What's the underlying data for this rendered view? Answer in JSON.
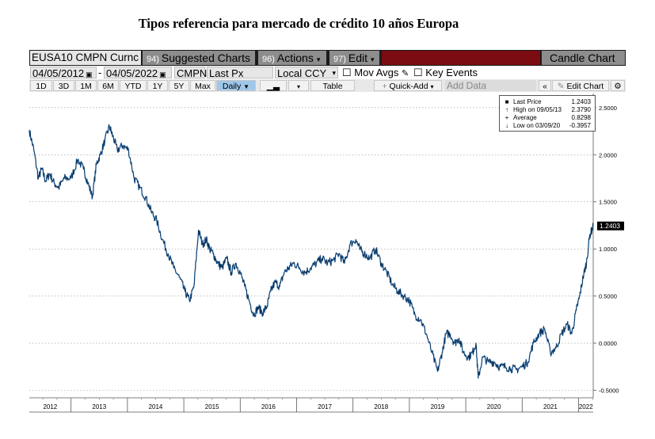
{
  "title": "Tipos referencia para mercado de crédito 10 años Europa",
  "toolbar": {
    "ticker": "EUSA10 CMPN Curnc",
    "suggested_num": "94)",
    "suggested_label": "Suggested Charts",
    "actions_num": "96)",
    "actions_label": "Actions",
    "edit_num": "97)",
    "edit_label": "Edit",
    "candle_label": "Candle Chart",
    "start_date": "04/05/2012",
    "dash": "-",
    "end_date": "04/05/2022",
    "source": "CMPN",
    "field": "Last Px",
    "currency": "Local CCY",
    "mov_avgs": "Mov Avgs",
    "key_events": "Key Events",
    "table": "Table",
    "quick_add": "Quick-Add",
    "add_data": "Add Data",
    "edit_chart": "Edit Chart",
    "periods": [
      "1D",
      "3D",
      "1M",
      "6M",
      "YTD",
      "1Y",
      "5Y",
      "Max"
    ],
    "frequency": "Daily",
    "colors": {
      "bar": "#1c1c1c",
      "menu": "#8d8d8d",
      "accent_red": "#7a0c12",
      "active": "#9fc7ea"
    }
  },
  "legend": {
    "items": [
      {
        "glyph": "■",
        "label": "Last Price",
        "value": "1.2403"
      },
      {
        "glyph": "↑",
        "label": "High on 09/05/13",
        "value": "2.3790"
      },
      {
        "glyph": "+",
        "label": "Average",
        "value": "0.8298"
      },
      {
        "glyph": "↓",
        "label": "Low on 03/09/20",
        "value": "-0.3957"
      }
    ]
  },
  "chart_data": {
    "type": "line",
    "title": "Tipos referencia para mercado de crédito 10 años Europa",
    "xlabel": "",
    "ylabel": "",
    "x_range": [
      2012.26,
      2022.26
    ],
    "ylim": [
      -0.58,
      2.65
    ],
    "grid": true,
    "line_color": "#1f6bb3",
    "last_value_label": "1.2403",
    "y_ticks": [
      2.5,
      2.0,
      1.5,
      1.0,
      0.5,
      0.0,
      -0.5
    ],
    "y_tick_labels": [
      "2.5000",
      "2.0000",
      "1.5000",
      "1.0000",
      "0.5000",
      "0.0000",
      "-0.5000"
    ],
    "x_year_ticks": [
      2012,
      2013,
      2014,
      2015,
      2016,
      2017,
      2018,
      2019,
      2020,
      2021,
      2022
    ],
    "x_year_labels": [
      "2012",
      "2013",
      "2014",
      "2015",
      "2016",
      "2017",
      "2018",
      "2019",
      "2020",
      "2021",
      "2022"
    ],
    "series": [
      {
        "name": "EUSA10 CMPN Curnc - Last Price",
        "x": [
          2012.26,
          2012.34,
          2012.42,
          2012.48,
          2012.55,
          2012.62,
          2012.7,
          2012.78,
          2012.88,
          2013.0,
          2013.12,
          2013.22,
          2013.3,
          2013.38,
          2013.45,
          2013.52,
          2013.6,
          2013.68,
          2013.74,
          2013.82,
          2013.92,
          2014.02,
          2014.12,
          2014.22,
          2014.32,
          2014.42,
          2014.52,
          2014.62,
          2014.72,
          2014.82,
          2014.92,
          2015.02,
          2015.1,
          2015.18,
          2015.26,
          2015.33,
          2015.4,
          2015.46,
          2015.52,
          2015.6,
          2015.68,
          2015.76,
          2015.84,
          2015.92,
          2016.0,
          2016.08,
          2016.16,
          2016.24,
          2016.32,
          2016.4,
          2016.48,
          2016.54,
          2016.62,
          2016.7,
          2016.78,
          2016.86,
          2016.95,
          2017.05,
          2017.15,
          2017.25,
          2017.35,
          2017.45,
          2017.55,
          2017.65,
          2017.75,
          2017.85,
          2017.95,
          2018.05,
          2018.12,
          2018.2,
          2018.3,
          2018.4,
          2018.5,
          2018.6,
          2018.7,
          2018.8,
          2018.9,
          2019.0,
          2019.1,
          2019.2,
          2019.3,
          2019.4,
          2019.5,
          2019.58,
          2019.65,
          2019.72,
          2019.8,
          2019.88,
          2019.96,
          2020.05,
          2020.12,
          2020.18,
          2020.22,
          2020.3,
          2020.4,
          2020.5,
          2020.6,
          2020.7,
          2020.8,
          2020.9,
          2021.0,
          2021.1,
          2021.2,
          2021.3,
          2021.4,
          2021.5,
          2021.6,
          2021.7,
          2021.8,
          2021.88,
          2021.96,
          2022.02,
          2022.08,
          2022.14,
          2022.2,
          2022.26
        ],
        "y": [
          2.26,
          2.05,
          1.75,
          1.85,
          1.72,
          1.8,
          1.7,
          1.65,
          1.75,
          1.75,
          1.95,
          1.85,
          1.7,
          1.55,
          1.9,
          2.0,
          2.15,
          2.3,
          2.2,
          2.05,
          2.1,
          2.05,
          1.75,
          1.65,
          1.55,
          1.4,
          1.3,
          1.1,
          0.95,
          0.8,
          0.7,
          0.55,
          0.45,
          0.6,
          1.2,
          1.05,
          1.1,
          1.0,
          0.95,
          0.85,
          0.8,
          0.9,
          0.75,
          0.85,
          0.75,
          0.6,
          0.45,
          0.3,
          0.38,
          0.32,
          0.4,
          0.55,
          0.65,
          0.6,
          0.75,
          0.8,
          0.85,
          0.8,
          0.75,
          0.8,
          0.85,
          0.9,
          0.85,
          0.88,
          0.95,
          0.85,
          1.05,
          1.1,
          1.0,
          0.95,
          0.9,
          1.0,
          0.85,
          0.75,
          0.62,
          0.55,
          0.5,
          0.45,
          0.3,
          0.25,
          0.1,
          -0.1,
          -0.3,
          -0.1,
          0.1,
          0.1,
          0.0,
          0.05,
          -0.1,
          -0.15,
          -0.1,
          0.0,
          -0.37,
          -0.15,
          -0.2,
          -0.2,
          -0.25,
          -0.25,
          -0.27,
          -0.28,
          -0.25,
          -0.2,
          0.0,
          0.1,
          0.15,
          -0.1,
          -0.05,
          0.1,
          0.2,
          0.1,
          0.35,
          0.5,
          0.7,
          0.85,
          1.15,
          1.24
        ]
      }
    ]
  }
}
